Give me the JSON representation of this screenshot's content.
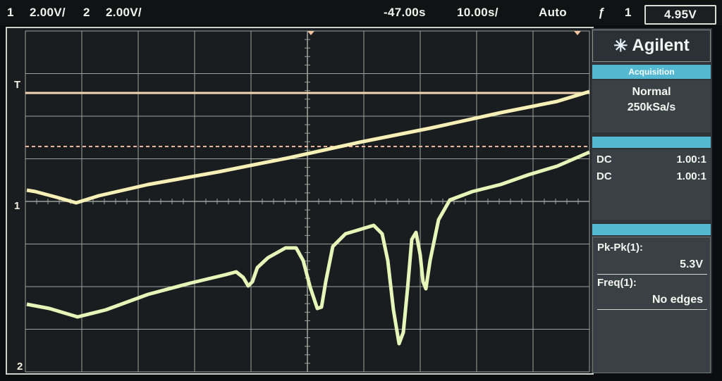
{
  "topbar": {
    "ch1_num": "1",
    "ch1_scale": "2.00V/",
    "ch2_num": "2",
    "ch2_scale": "2.00V/",
    "time_offset": "-47.00s",
    "time_scale": "10.00s/",
    "trigger_mode": "Auto",
    "trigger_icon": "trigger-edge-icon",
    "trigger_channel": "1",
    "trigger_level": "4.95V"
  },
  "screen_markers": {
    "trigger_marker": "T",
    "ch1_marker": "1",
    "ch2_marker": "2"
  },
  "panel": {
    "brand": "Agilent",
    "acquisition_header": "Acquisition",
    "acquisition_mode": "Normal",
    "sample_rate": "250kSa/s",
    "channels": [
      {
        "coupling": "DC",
        "probe": "1.00:1"
      },
      {
        "coupling": "DC",
        "probe": "1.00:1"
      }
    ],
    "measurements": [
      {
        "label": "Pk-Pk(1):",
        "value": "5.3V"
      },
      {
        "label": "Freq(1):",
        "value": "No edges"
      }
    ]
  },
  "colors": {
    "trace1": "#f6efb6",
    "trace2": "#e6f5b8",
    "grid": "#9aa29c",
    "ref_line": "#f1d6b4",
    "dashed_line": "#f0b59a",
    "accent": "#54b9d0"
  }
}
